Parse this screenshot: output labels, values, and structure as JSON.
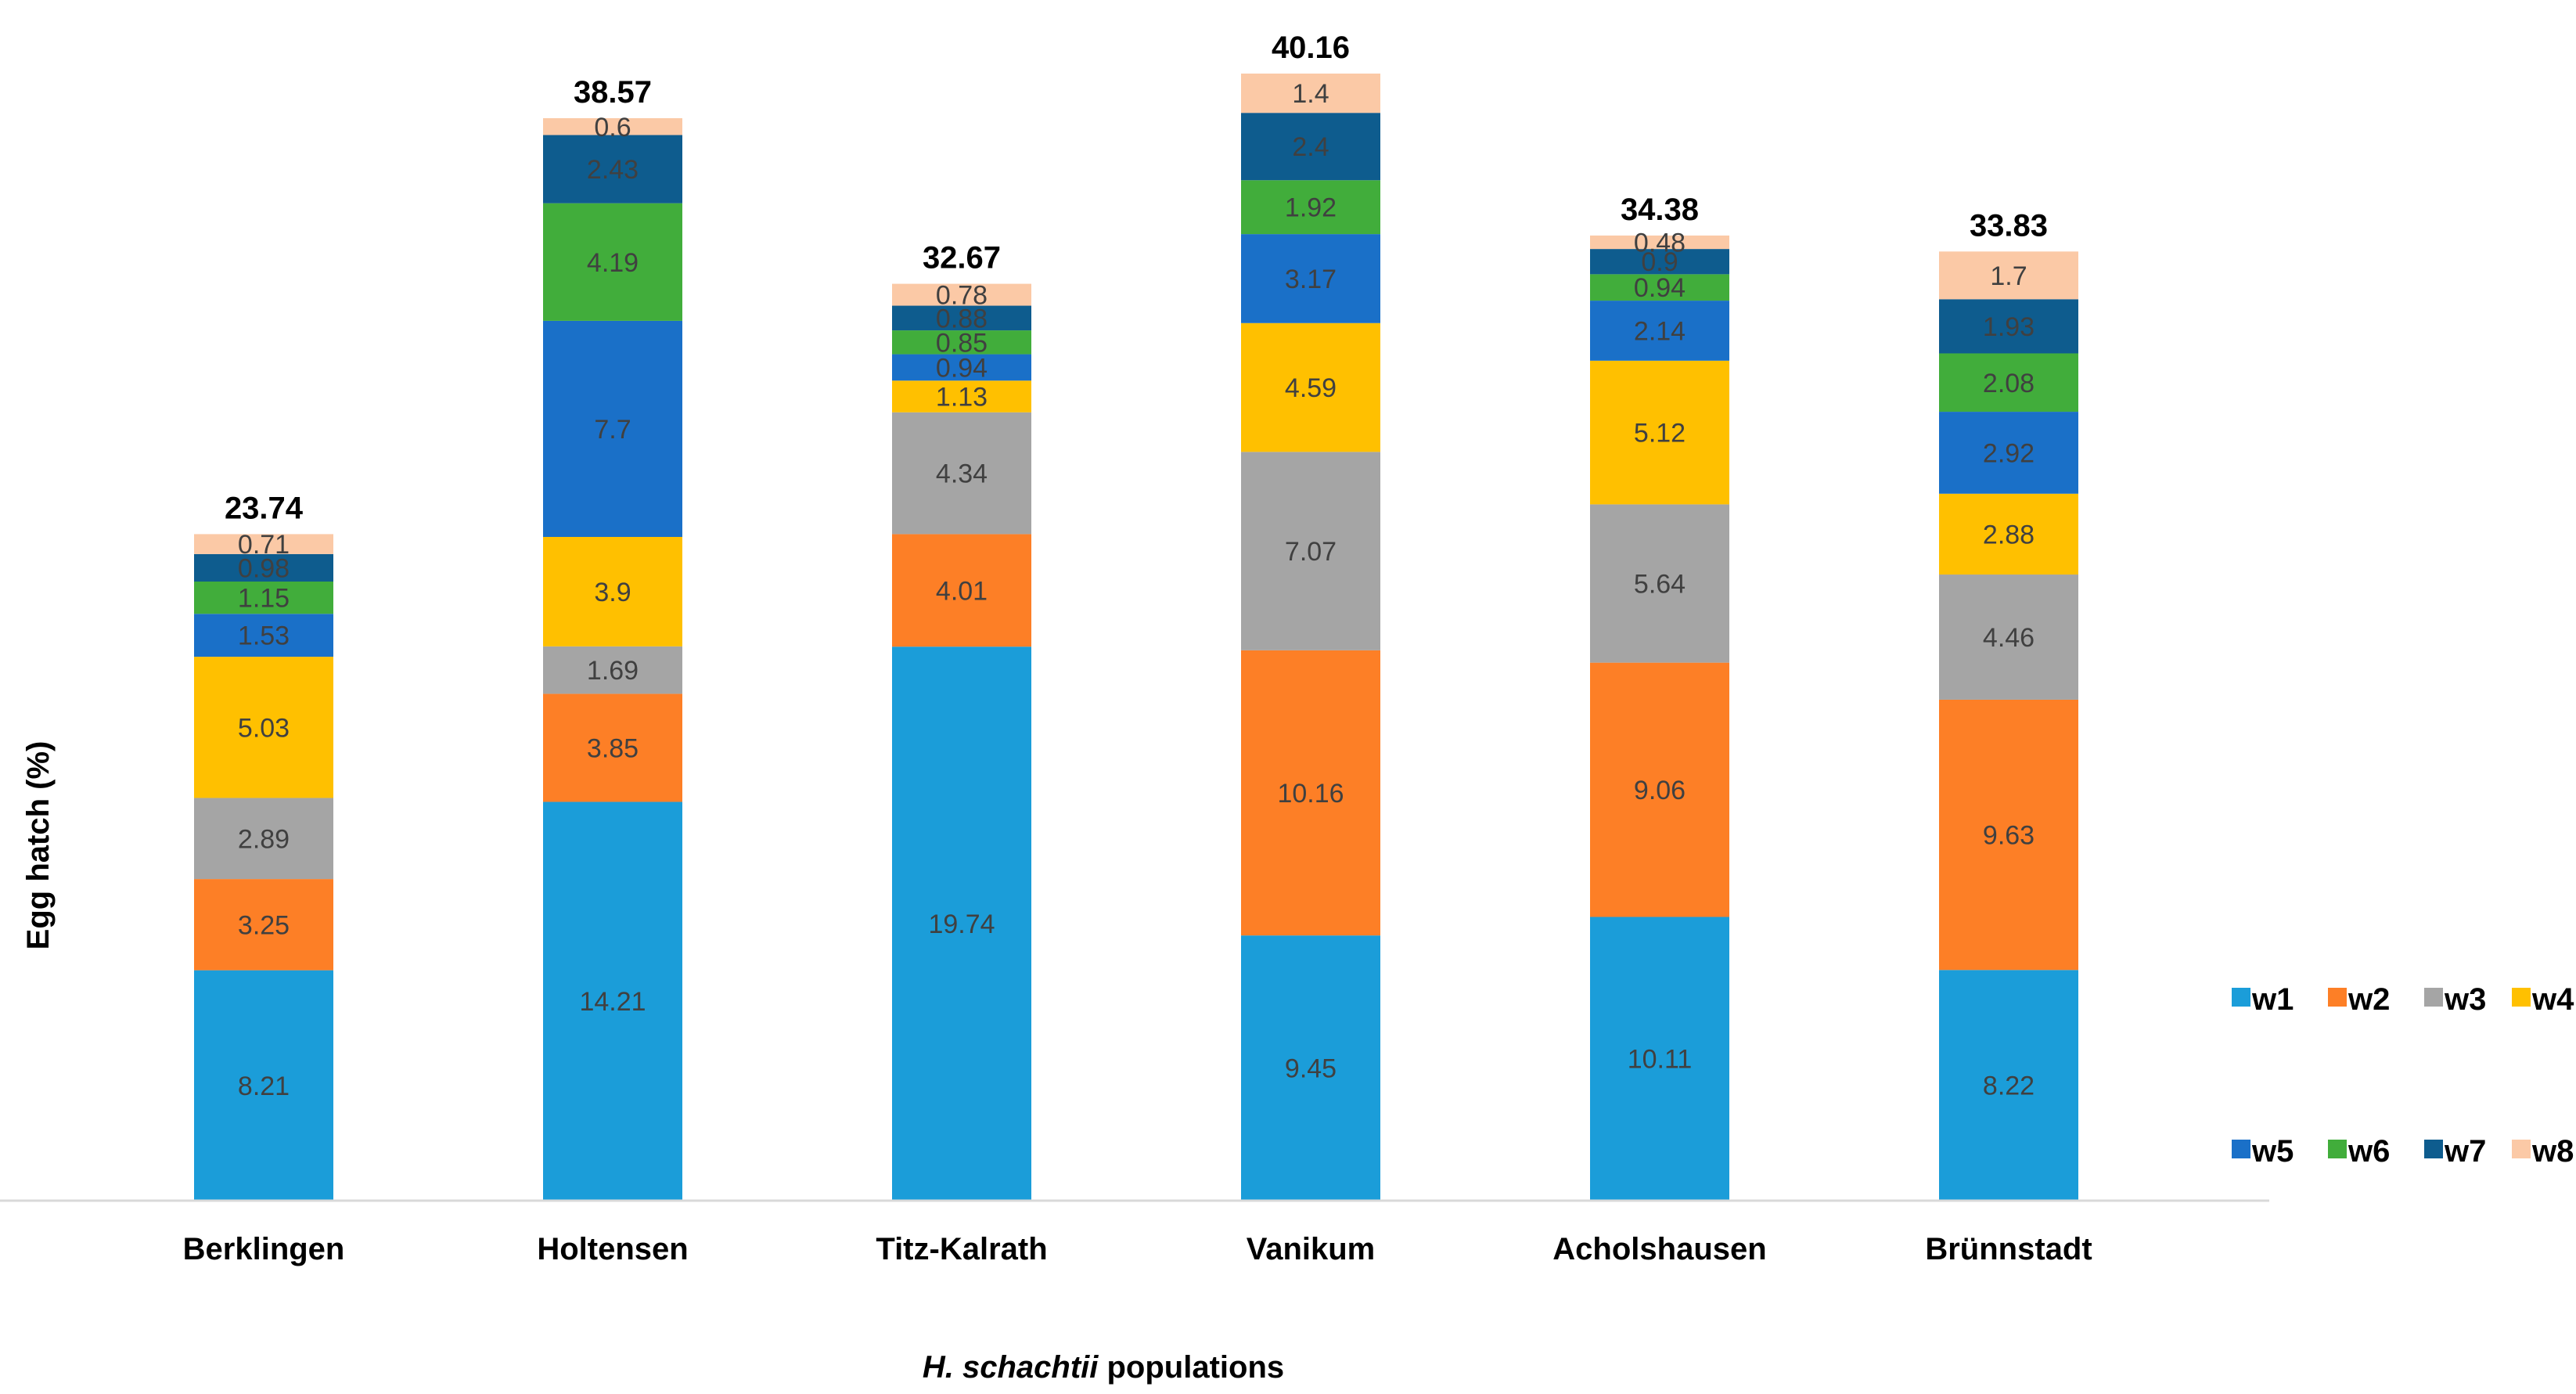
{
  "chart_data": {
    "type": "bar",
    "stacked": true,
    "categories": [
      "Berklingen",
      "Holtensen",
      "Titz-Kalrath",
      "Vanikum",
      "Acholshausen",
      "Brünnstadt"
    ],
    "series": [
      {
        "name": "w1",
        "color": "#1b9dd9",
        "values": [
          8.21,
          14.21,
          19.74,
          9.45,
          10.11,
          8.22
        ]
      },
      {
        "name": "w2",
        "color": "#fd7f26",
        "values": [
          3.25,
          3.85,
          4.01,
          10.16,
          9.06,
          9.63
        ]
      },
      {
        "name": "w3",
        "color": "#a5a5a5",
        "values": [
          2.89,
          1.69,
          4.34,
          7.07,
          5.64,
          4.46
        ]
      },
      {
        "name": "w4",
        "color": "#ffc000",
        "values": [
          5.03,
          3.9,
          1.13,
          4.59,
          5.12,
          2.88
        ]
      },
      {
        "name": "w5",
        "color": "#1a70c8",
        "values": [
          1.53,
          7.7,
          0.94,
          3.17,
          2.14,
          2.92
        ]
      },
      {
        "name": "w6",
        "color": "#41ad3b",
        "values": [
          1.15,
          4.19,
          0.85,
          1.92,
          0.94,
          2.08
        ]
      },
      {
        "name": "w7",
        "color": "#0e5c8e",
        "values": [
          0.98,
          2.43,
          0.88,
          2.4,
          0.9,
          1.93
        ]
      },
      {
        "name": "w8",
        "color": "#fbc9a6",
        "values": [
          0.71,
          0.6,
          0.78,
          1.4,
          0.48,
          1.7
        ]
      }
    ],
    "totals": [
      "23.74",
      "38.57",
      "32.67",
      "40.16",
      "34.38",
      "33.83"
    ],
    "segment_labels": [
      [
        "8.21",
        "3.25",
        "2.89",
        "5.03",
        "1.53",
        "1.15",
        "0.98",
        "0.71"
      ],
      [
        "14.21",
        "3.85",
        "1.69",
        "3.9",
        "7.7",
        "4.19",
        "2.43",
        "0.6"
      ],
      [
        "19.74",
        "4.01",
        "4.34",
        "1.13",
        "0.94",
        "0.85",
        "0.88",
        "0.78"
      ],
      [
        "9.45",
        "10.16",
        "7.07",
        "4.59",
        "3.17",
        "1.92",
        "2.4",
        "1.4"
      ],
      [
        "10.11",
        "9.06",
        "5.64",
        "5.12",
        "2.14",
        "0.94",
        "0.9",
        "0.48"
      ],
      [
        "8.22",
        "9.63",
        "4.46",
        "2.88",
        "2.92",
        "2.08",
        "1.93",
        "1.7"
      ]
    ],
    "ylabel": "Egg hatch (%)",
    "xlabel_italic": "H. schachtii",
    "xlabel_rest": " populations",
    "ylim": [
      0,
      40.16
    ],
    "grid": false,
    "legend_position": "right"
  }
}
